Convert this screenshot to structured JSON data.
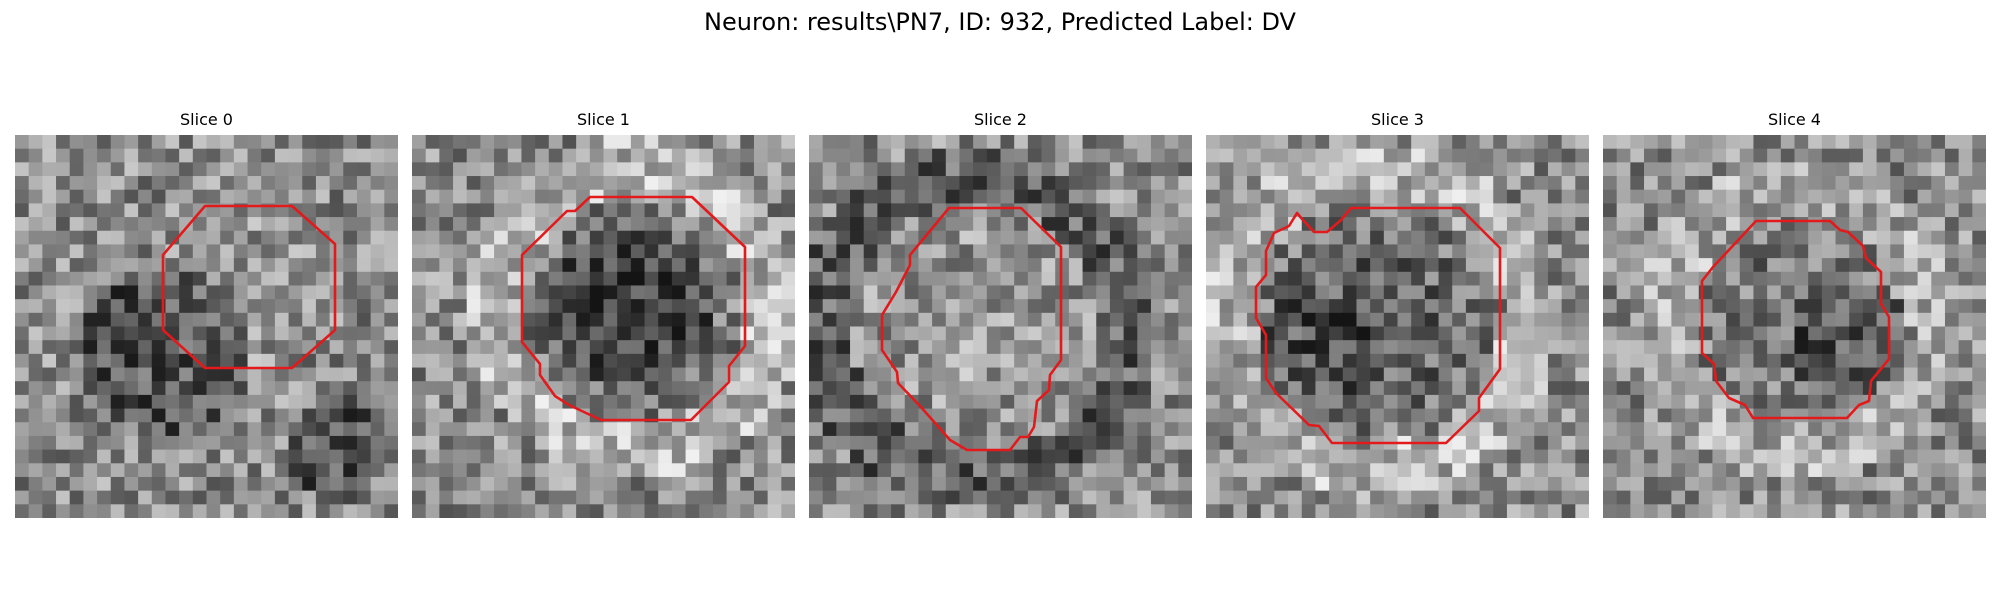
{
  "figure": {
    "title": "Neuron: results\\PN7, ID: 932, Predicted Label: DV",
    "outline_color": "#e31a1c"
  },
  "slices": [
    {
      "title": "Slice 0"
    },
    {
      "title": "Slice 1"
    },
    {
      "title": "Slice 2"
    },
    {
      "title": "Slice 3"
    },
    {
      "title": "Slice 4"
    }
  ]
}
